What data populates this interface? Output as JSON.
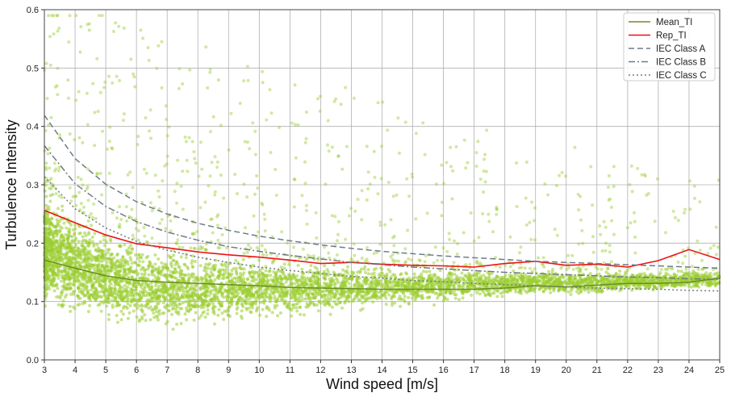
{
  "chart_data": {
    "type": "scatter",
    "title": "",
    "xlabel": "Wind speed [m/s]",
    "ylabel": "Turbulence Intensity",
    "xlim": [
      3,
      25
    ],
    "ylim": [
      0.0,
      0.6
    ],
    "xticks": [
      3,
      4,
      5,
      6,
      7,
      8,
      9,
      10,
      11,
      12,
      13,
      14,
      15,
      16,
      17,
      18,
      19,
      20,
      21,
      22,
      23,
      24,
      25
    ],
    "yticks": [
      0.0,
      0.1,
      0.2,
      0.3,
      0.4,
      0.5,
      0.6
    ],
    "ytick_labels": [
      "0.0",
      "0.1",
      "0.2",
      "0.3",
      "0.4",
      "0.5",
      "0.6"
    ],
    "grid": true,
    "legend_position": "top-right",
    "scatter_color": "#9acd32",
    "scatter_description_points": {
      "x": [
        3,
        3.5,
        4,
        4.5,
        5,
        5.5,
        6,
        7,
        8,
        9,
        10,
        11,
        12,
        13,
        14,
        15,
        16,
        17,
        18,
        19,
        20,
        21,
        22,
        23,
        24,
        25
      ],
      "y_low": [
        0.08,
        0.07,
        0.065,
        0.06,
        0.055,
        0.05,
        0.048,
        0.05,
        0.055,
        0.06,
        0.065,
        0.07,
        0.075,
        0.08,
        0.085,
        0.09,
        0.095,
        0.1,
        0.105,
        0.11,
        0.11,
        0.11,
        0.115,
        0.115,
        0.12,
        0.12
      ],
      "y_high": [
        0.3,
        0.28,
        0.26,
        0.245,
        0.23,
        0.215,
        0.205,
        0.195,
        0.19,
        0.185,
        0.18,
        0.175,
        0.17,
        0.168,
        0.165,
        0.162,
        0.16,
        0.16,
        0.158,
        0.156,
        0.155,
        0.155,
        0.155,
        0.155,
        0.155,
        0.155
      ]
    },
    "series": [
      {
        "name": "Mean_TI",
        "style": "solid",
        "color": "#6b8e23",
        "x": [
          3,
          4,
          5,
          6,
          7,
          8,
          9,
          10,
          11,
          12,
          13,
          14,
          15,
          16,
          17,
          18,
          19,
          20,
          21,
          22,
          23,
          24,
          25
        ],
        "y": [
          0.171,
          0.157,
          0.144,
          0.136,
          0.133,
          0.131,
          0.129,
          0.127,
          0.124,
          0.123,
          0.122,
          0.121,
          0.121,
          0.121,
          0.121,
          0.123,
          0.127,
          0.125,
          0.128,
          0.131,
          0.131,
          0.133,
          0.14
        ]
      },
      {
        "name": "Rep_TI",
        "style": "solid",
        "color": "#ee1111",
        "x": [
          3,
          4,
          5,
          6,
          7,
          8,
          9,
          10,
          11,
          12,
          13,
          14,
          15,
          16,
          17,
          18,
          19,
          20,
          21,
          22,
          23,
          24,
          25
        ],
        "y": [
          0.256,
          0.235,
          0.214,
          0.199,
          0.192,
          0.185,
          0.18,
          0.176,
          0.171,
          0.165,
          0.167,
          0.164,
          0.162,
          0.161,
          0.159,
          0.165,
          0.169,
          0.162,
          0.164,
          0.159,
          0.17,
          0.189,
          0.172
        ]
      },
      {
        "name": "IEC Class A",
        "style": "dashed",
        "color": "#6e7b88",
        "x": [
          3,
          4,
          5,
          6,
          7,
          8,
          9,
          10,
          11,
          12,
          13,
          14,
          15,
          16,
          17,
          18,
          19,
          20,
          21,
          22,
          23,
          24,
          25
        ],
        "y": [
          0.419,
          0.345,
          0.301,
          0.271,
          0.25,
          0.234,
          0.222,
          0.212,
          0.204,
          0.197,
          0.191,
          0.186,
          0.182,
          0.178,
          0.175,
          0.172,
          0.169,
          0.167,
          0.165,
          0.163,
          0.161,
          0.159,
          0.157
        ]
      },
      {
        "name": "IEC Class B",
        "style": "dashdot",
        "color": "#707a82",
        "x": [
          3,
          4,
          5,
          6,
          7,
          8,
          9,
          10,
          11,
          12,
          13,
          14,
          15,
          16,
          17,
          18,
          19,
          20,
          21,
          22,
          23,
          24,
          25
        ],
        "y": [
          0.367,
          0.302,
          0.263,
          0.237,
          0.219,
          0.205,
          0.194,
          0.186,
          0.179,
          0.173,
          0.167,
          0.163,
          0.159,
          0.156,
          0.153,
          0.15,
          0.148,
          0.146,
          0.144,
          0.142,
          0.141,
          0.139,
          0.138
        ]
      },
      {
        "name": "IEC Class C",
        "style": "dotted",
        "color": "#707a82",
        "x": [
          3,
          4,
          5,
          6,
          7,
          8,
          9,
          10,
          11,
          12,
          13,
          14,
          15,
          16,
          17,
          18,
          19,
          20,
          21,
          22,
          23,
          24,
          25
        ],
        "y": [
          0.314,
          0.259,
          0.226,
          0.203,
          0.188,
          0.176,
          0.167,
          0.159,
          0.153,
          0.148,
          0.143,
          0.14,
          0.136,
          0.134,
          0.131,
          0.129,
          0.127,
          0.125,
          0.123,
          0.122,
          0.121,
          0.119,
          0.118
        ]
      }
    ]
  }
}
